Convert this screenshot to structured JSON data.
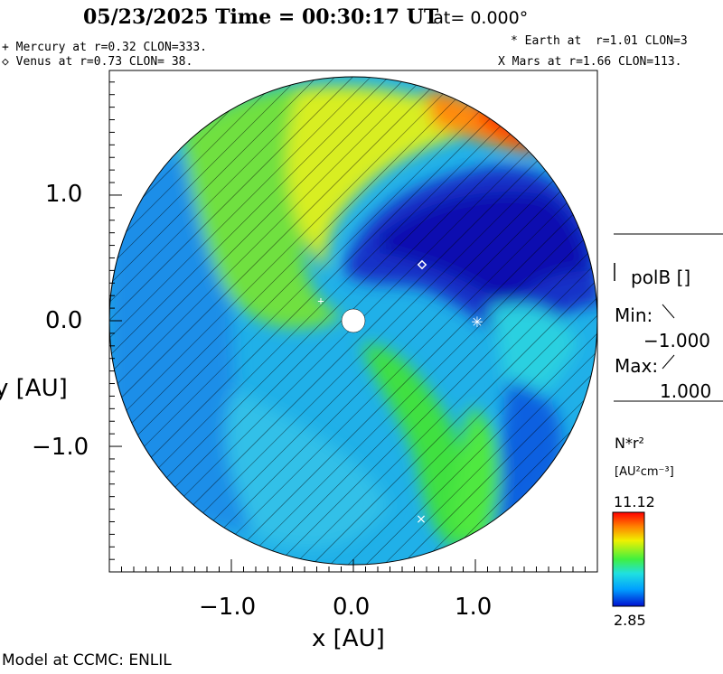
{
  "header": {
    "title": "05/23/2025 Time = 00:30:17 UT",
    "lat": "lat= 0.000°"
  },
  "planets": {
    "mercury": "+ Mercury at r=0.32 CLON=333.",
    "venus": "◇ Venus at r=0.73 CLON= 38.",
    "earth": "* Earth at  r=1.01 CLON=3",
    "mars": "X Mars at r=1.66 CLON=113."
  },
  "axes": {
    "xlabel": "x [AU]",
    "ylabel": "y [AU]",
    "xticks": [
      "−1.0",
      "0.0",
      "1.0"
    ],
    "yticks": [
      "1.0",
      "0.0",
      "−1.0"
    ]
  },
  "polarity_legend": {
    "title": "polB []",
    "min_label": "Min:",
    "min_value": "−1.000",
    "max_label": "Max:",
    "max_value": "1.000"
  },
  "colorbar": {
    "title": "N*r²",
    "units": "[AU²cm⁻³]",
    "max": "11.12",
    "min": "2.85",
    "colors": [
      "#0010d0",
      "#00a0ff",
      "#20e0e0",
      "#40f040",
      "#f0f000",
      "#ff8000",
      "#ff0000"
    ]
  },
  "footer": "Model at CCMC: ENLIL"
}
